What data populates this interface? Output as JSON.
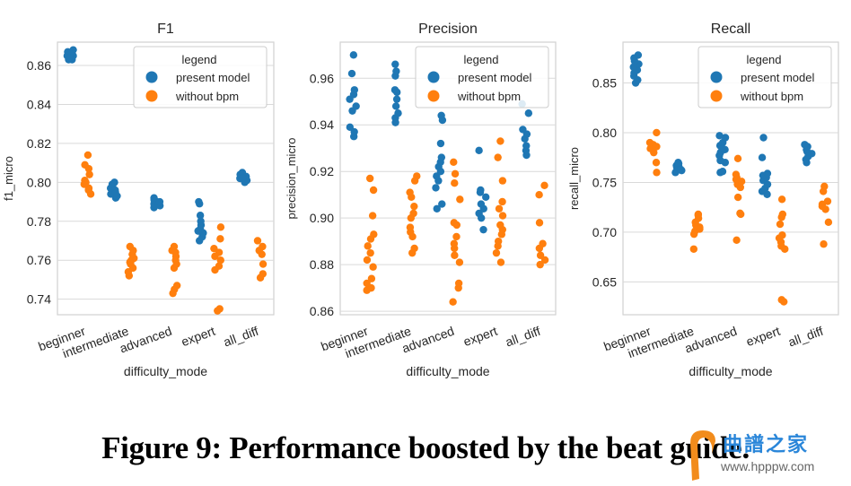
{
  "caption": "Figure 9: Performance boosted by the beat guide.",
  "watermark": {
    "text_cn": "曲譜之家",
    "url": "www.hpppw.com"
  },
  "colors": {
    "present_model": "#1f77b4",
    "without_bpm": "#ff7f0e",
    "grid": "#d9d9d9",
    "frame": "#d0d0d0"
  },
  "chart_data": [
    {
      "type": "scatter",
      "title": "F1",
      "xlabel": "difficulty_mode",
      "ylabel": "f1_micro",
      "categories": [
        "beginner",
        "intermediate",
        "advanced",
        "expert",
        "all_diff"
      ],
      "yticks": [
        0.74,
        0.76,
        0.78,
        0.8,
        0.82,
        0.84,
        0.86
      ],
      "ytick_labels": [
        "0.74",
        "0.76",
        "0.78",
        "0.80",
        "0.82",
        "0.84",
        "0.86"
      ],
      "ylim": [
        0.732,
        0.872
      ],
      "grid": true,
      "legend": {
        "title": "legend",
        "position": "top-right",
        "entries": [
          "present model",
          "without bpm"
        ]
      },
      "series": [
        {
          "name": "present model",
          "values": [
            [
              0.863,
              0.864,
              0.865,
              0.866,
              0.867,
              0.868,
              0.863,
              0.865,
              0.866,
              0.864
            ],
            [
              0.792,
              0.793,
              0.794,
              0.795,
              0.796,
              0.797,
              0.798,
              0.799,
              0.8,
              0.793
            ],
            [
              0.787,
              0.788,
              0.789,
              0.79,
              0.791,
              0.792,
              0.788,
              0.79
            ],
            [
              0.77,
              0.772,
              0.774,
              0.775,
              0.776,
              0.778,
              0.78,
              0.783,
              0.789,
              0.79,
              0.775
            ],
            [
              0.8,
              0.801,
              0.802,
              0.803,
              0.804,
              0.805,
              0.802
            ]
          ]
        },
        {
          "name": "without bpm",
          "values": [
            [
              0.794,
              0.796,
              0.797,
              0.799,
              0.8,
              0.801,
              0.804,
              0.807,
              0.809,
              0.814
            ],
            [
              0.752,
              0.754,
              0.756,
              0.758,
              0.76,
              0.761,
              0.763,
              0.765,
              0.767,
              0.759
            ],
            [
              0.743,
              0.745,
              0.747,
              0.756,
              0.758,
              0.76,
              0.762,
              0.764,
              0.765,
              0.767
            ],
            [
              0.734,
              0.735,
              0.755,
              0.757,
              0.76,
              0.762,
              0.764,
              0.766,
              0.771,
              0.777
            ],
            [
              0.751,
              0.753,
              0.758,
              0.763,
              0.765,
              0.767,
              0.77
            ]
          ]
        }
      ]
    },
    {
      "type": "scatter",
      "title": "Precision",
      "xlabel": "difficulty_mode",
      "ylabel": "precision_micro",
      "categories": [
        "beginner",
        "intermediate",
        "advanced",
        "expert",
        "all_diff"
      ],
      "yticks": [
        0.86,
        0.88,
        0.9,
        0.92,
        0.94,
        0.96
      ],
      "ytick_labels": [
        "0.86",
        "0.88",
        "0.90",
        "0.92",
        "0.94",
        "0.96"
      ],
      "ylim": [
        0.8585,
        0.9755
      ],
      "grid": true,
      "legend": {
        "title": "legend",
        "position": "top-right",
        "entries": [
          "present model",
          "without bpm"
        ]
      },
      "series": [
        {
          "name": "present model",
          "values": [
            [
              0.935,
              0.937,
              0.939,
              0.946,
              0.948,
              0.951,
              0.953,
              0.955,
              0.962,
              0.97
            ],
            [
              0.941,
              0.943,
              0.945,
              0.948,
              0.951,
              0.954,
              0.955,
              0.961,
              0.963,
              0.966
            ],
            [
              0.904,
              0.906,
              0.913,
              0.916,
              0.918,
              0.92,
              0.922,
              0.924,
              0.926,
              0.932,
              0.942,
              0.944
            ],
            [
              0.895,
              0.9,
              0.902,
              0.904,
              0.906,
              0.909,
              0.911,
              0.912,
              0.929
            ],
            [
              0.927,
              0.929,
              0.931,
              0.934,
              0.936,
              0.938,
              0.945,
              0.949
            ]
          ]
        },
        {
          "name": "without bpm",
          "values": [
            [
              0.869,
              0.87,
              0.872,
              0.874,
              0.879,
              0.882,
              0.885,
              0.888,
              0.891,
              0.893,
              0.901,
              0.912,
              0.917
            ],
            [
              0.885,
              0.887,
              0.892,
              0.894,
              0.896,
              0.9,
              0.902,
              0.905,
              0.909,
              0.911,
              0.916,
              0.918
            ],
            [
              0.864,
              0.87,
              0.872,
              0.881,
              0.884,
              0.887,
              0.889,
              0.892,
              0.897,
              0.898,
              0.908,
              0.915,
              0.919,
              0.924
            ],
            [
              0.881,
              0.885,
              0.888,
              0.89,
              0.893,
              0.895,
              0.897,
              0.901,
              0.904,
              0.907,
              0.916,
              0.926,
              0.933
            ],
            [
              0.88,
              0.882,
              0.884,
              0.887,
              0.889,
              0.898,
              0.91,
              0.914
            ]
          ]
        }
      ]
    },
    {
      "type": "scatter",
      "title": "Recall",
      "xlabel": "difficulty_mode",
      "ylabel": "recall_micro",
      "categories": [
        "beginner",
        "intermediate",
        "advanced",
        "expert",
        "all_diff"
      ],
      "yticks": [
        0.65,
        0.7,
        0.75,
        0.8,
        0.85
      ],
      "ytick_labels": [
        "0.65",
        "0.70",
        "0.75",
        "0.80",
        "0.85"
      ],
      "ylim": [
        0.617,
        0.891
      ],
      "grid": true,
      "legend": {
        "title": "legend",
        "position": "top-right",
        "entries": [
          "present model",
          "without bpm"
        ]
      },
      "series": [
        {
          "name": "present model",
          "values": [
            [
              0.85,
              0.853,
              0.857,
              0.86,
              0.863,
              0.866,
              0.869,
              0.872,
              0.875,
              0.878
            ],
            [
              0.76,
              0.762,
              0.764,
              0.765,
              0.766,
              0.767,
              0.768,
              0.769,
              0.77,
              0.763
            ],
            [
              0.76,
              0.761,
              0.77,
              0.772,
              0.777,
              0.78,
              0.783,
              0.785,
              0.787,
              0.79,
              0.795,
              0.797
            ],
            [
              0.738,
              0.741,
              0.744,
              0.748,
              0.752,
              0.755,
              0.757,
              0.759,
              0.775,
              0.795
            ],
            [
              0.77,
              0.773,
              0.776,
              0.779,
              0.781,
              0.783,
              0.786,
              0.788
            ]
          ]
        },
        {
          "name": "without bpm",
          "values": [
            [
              0.76,
              0.77,
              0.78,
              0.784,
              0.786,
              0.788,
              0.79,
              0.8
            ],
            [
              0.683,
              0.698,
              0.701,
              0.703,
              0.705,
              0.707,
              0.71,
              0.714,
              0.717,
              0.718
            ],
            [
              0.692,
              0.718,
              0.719,
              0.735,
              0.745,
              0.748,
              0.751,
              0.753,
              0.755,
              0.758,
              0.774
            ],
            [
              0.63,
              0.632,
              0.683,
              0.686,
              0.69,
              0.694,
              0.697,
              0.708,
              0.715,
              0.718,
              0.733
            ],
            [
              0.688,
              0.71,
              0.723,
              0.726,
              0.728,
              0.731,
              0.741,
              0.746
            ]
          ]
        }
      ]
    }
  ]
}
